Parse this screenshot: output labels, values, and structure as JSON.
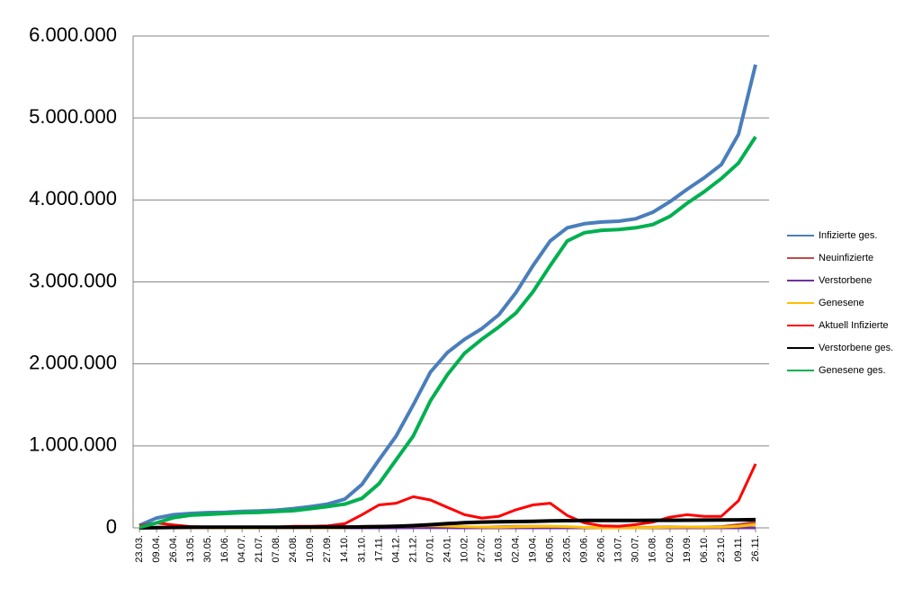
{
  "chart_data": {
    "type": "line",
    "categories": [
      "23.03.",
      "09.04.",
      "26.04.",
      "13.05.",
      "30.05.",
      "16.06.",
      "04.07.",
      "21.07.",
      "07.08.",
      "24.08.",
      "10.09.",
      "27.09.",
      "14.10.",
      "31.10.",
      "17.11.",
      "04.12.",
      "21.12.",
      "07.01.",
      "24.01.",
      "10.02.",
      "27.02.",
      "16.03.",
      "02.04.",
      "19.04.",
      "06.05.",
      "23.05.",
      "09.06.",
      "26.06.",
      "13.07.",
      "30.07.",
      "16.08.",
      "02.09.",
      "19.09.",
      "06.10.",
      "23.10.",
      "09.11.",
      "26.11."
    ],
    "series": [
      {
        "name": "Infizierte ges.",
        "color": "#4a7ebb",
        "values": [
          30000,
          120000,
          160000,
          175000,
          185000,
          190000,
          200000,
          205000,
          215000,
          235000,
          260000,
          290000,
          350000,
          530000,
          830000,
          1120000,
          1500000,
          1900000,
          2140000,
          2300000,
          2430000,
          2600000,
          2870000,
          3200000,
          3500000,
          3660000,
          3710000,
          3730000,
          3740000,
          3770000,
          3850000,
          3980000,
          4130000,
          4270000,
          4430000,
          4800000,
          5650000
        ]
      },
      {
        "name": "Neuinfizierte",
        "color": "#be4b48",
        "values": [
          4000,
          5000,
          1500,
          800,
          400,
          300,
          400,
          500,
          1000,
          1500,
          1500,
          2000,
          6000,
          19000,
          22000,
          23000,
          25000,
          26000,
          13000,
          8000,
          9000,
          13000,
          20000,
          20000,
          18000,
          5000,
          3000,
          800,
          1000,
          3000,
          8000,
          12000,
          9000,
          10000,
          15000,
          40000,
          70000
        ]
      },
      {
        "name": "Verstorbene",
        "color": "#7030a0",
        "values": [
          50,
          200,
          200,
          100,
          50,
          20,
          10,
          10,
          10,
          10,
          10,
          10,
          20,
          80,
          250,
          400,
          700,
          900,
          700,
          400,
          200,
          200,
          200,
          250,
          200,
          100,
          50,
          30,
          20,
          20,
          30,
          50,
          80,
          70,
          100,
          200,
          300
        ]
      },
      {
        "name": "Genesene",
        "color": "#ffc000",
        "values": [
          500,
          3000,
          4000,
          2000,
          800,
          400,
          300,
          300,
          600,
          1000,
          1200,
          1500,
          2500,
          8000,
          17000,
          20000,
          22000,
          27000,
          22000,
          15000,
          10000,
          9000,
          13000,
          17000,
          20000,
          15000,
          5000,
          1500,
          700,
          1500,
          4000,
          9000,
          10000,
          9000,
          10000,
          20000,
          40000
        ]
      },
      {
        "name": "Aktuell Infizierte",
        "color": "#ff0000",
        "values": [
          25000,
          60000,
          35000,
          15000,
          10000,
          7000,
          6000,
          7000,
          10000,
          20000,
          20000,
          25000,
          50000,
          160000,
          280000,
          300000,
          380000,
          340000,
          250000,
          160000,
          120000,
          140000,
          220000,
          280000,
          300000,
          150000,
          60000,
          25000,
          20000,
          40000,
          70000,
          130000,
          160000,
          140000,
          140000,
          330000,
          780000
        ]
      },
      {
        "name": "Verstorbene ges.",
        "color": "#000000",
        "values": [
          200,
          2500,
          6000,
          7800,
          8600,
          8900,
          9100,
          9200,
          9300,
          9300,
          9400,
          9500,
          9800,
          10500,
          13000,
          19000,
          27000,
          38000,
          52000,
          63000,
          70000,
          74000,
          77000,
          80000,
          85000,
          87500,
          89500,
          90500,
          91000,
          91500,
          92000,
          92500,
          93500,
          94500,
          96000,
          97500,
          100000
        ]
      },
      {
        "name": "Genesene ges.",
        "color": "#00b050",
        "values": [
          5000,
          60000,
          125000,
          155000,
          165000,
          175000,
          185000,
          190000,
          200000,
          210000,
          235000,
          260000,
          290000,
          360000,
          540000,
          830000,
          1120000,
          1550000,
          1870000,
          2130000,
          2300000,
          2450000,
          2620000,
          2880000,
          3200000,
          3500000,
          3600000,
          3630000,
          3640000,
          3660000,
          3700000,
          3800000,
          3960000,
          4100000,
          4260000,
          4450000,
          4770000
        ]
      }
    ],
    "ylim": [
      0,
      6000000
    ],
    "yticks": [
      0,
      {
        "value": 1000000,
        "label": "1.000.000"
      },
      {
        "value": 2000000,
        "label": "2.000.000"
      },
      {
        "value": 3000000,
        "label": "3.000.000"
      },
      {
        "value": 4000000,
        "label": "4.000.000"
      },
      {
        "value": 5000000,
        "label": "5.000.000"
      },
      {
        "value": 6000000,
        "label": "6.000.000"
      }
    ],
    "grid": true,
    "legend": "right"
  }
}
